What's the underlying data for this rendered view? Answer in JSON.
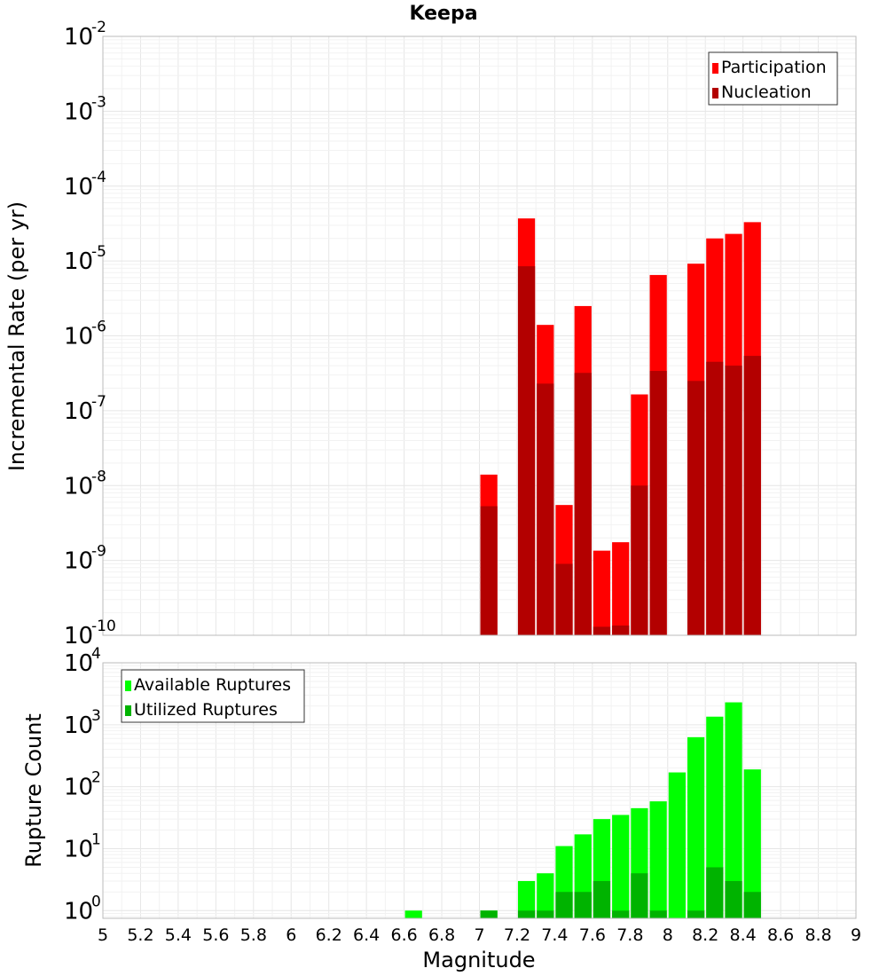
{
  "title": "Keepa",
  "chart_data": [
    {
      "type": "bar",
      "ylabel": "Incremental Rate (per yr)",
      "yscale": "log",
      "ylim": [
        1e-10,
        0.01
      ],
      "xlim": [
        5,
        9
      ],
      "grid": true,
      "legend_position": "top-right",
      "series": [
        {
          "name": "Participation",
          "color": "#ff0000",
          "points": [
            {
              "x": 7.05,
              "y": 1.4e-08
            },
            {
              "x": 7.25,
              "y": 3.7e-05
            },
            {
              "x": 7.35,
              "y": 1.4e-06
            },
            {
              "x": 7.45,
              "y": 5.5e-09
            },
            {
              "x": 7.55,
              "y": 2.5e-06
            },
            {
              "x": 7.65,
              "y": 1.35e-09
            },
            {
              "x": 7.75,
              "y": 1.75e-09
            },
            {
              "x": 7.85,
              "y": 1.65e-07
            },
            {
              "x": 7.95,
              "y": 6.5e-06
            },
            {
              "x": 8.15,
              "y": 9.2e-06
            },
            {
              "x": 8.25,
              "y": 2e-05
            },
            {
              "x": 8.35,
              "y": 2.3e-05
            },
            {
              "x": 8.45,
              "y": 3.3e-05
            }
          ]
        },
        {
          "name": "Nucleation",
          "color": "#b30000",
          "points": [
            {
              "x": 7.05,
              "y": 5.3e-09
            },
            {
              "x": 7.25,
              "y": 8.5e-06
            },
            {
              "x": 7.35,
              "y": 2.3e-07
            },
            {
              "x": 7.45,
              "y": 9e-10
            },
            {
              "x": 7.55,
              "y": 3.2e-07
            },
            {
              "x": 7.65,
              "y": 1.3e-10
            },
            {
              "x": 7.75,
              "y": 1.35e-10
            },
            {
              "x": 7.85,
              "y": 1e-08
            },
            {
              "x": 7.95,
              "y": 3.4e-07
            },
            {
              "x": 8.15,
              "y": 2.5e-07
            },
            {
              "x": 8.25,
              "y": 4.5e-07
            },
            {
              "x": 8.35,
              "y": 4e-07
            },
            {
              "x": 8.45,
              "y": 5.4e-07
            }
          ]
        }
      ]
    },
    {
      "type": "bar",
      "ylabel": "Rupture Count",
      "xlabel": "Magnitude",
      "yscale": "log",
      "ylim": [
        0.75,
        10000
      ],
      "xlim": [
        5,
        9
      ],
      "grid": true,
      "legend_position": "top-left",
      "series": [
        {
          "name": "Available Ruptures",
          "color": "#00ff00",
          "points": [
            {
              "x": 6.65,
              "y": 1
            },
            {
              "x": 7.05,
              "y": 1
            },
            {
              "x": 7.25,
              "y": 3
            },
            {
              "x": 7.35,
              "y": 4
            },
            {
              "x": 7.45,
              "y": 11
            },
            {
              "x": 7.55,
              "y": 17
            },
            {
              "x": 7.65,
              "y": 30
            },
            {
              "x": 7.75,
              "y": 35
            },
            {
              "x": 7.85,
              "y": 45
            },
            {
              "x": 7.95,
              "y": 58
            },
            {
              "x": 8.05,
              "y": 170
            },
            {
              "x": 8.15,
              "y": 630
            },
            {
              "x": 8.25,
              "y": 1350
            },
            {
              "x": 8.35,
              "y": 2300
            },
            {
              "x": 8.45,
              "y": 190
            }
          ]
        },
        {
          "name": "Utilized Ruptures",
          "color": "#00b300",
          "points": [
            {
              "x": 7.05,
              "y": 1
            },
            {
              "x": 7.25,
              "y": 1
            },
            {
              "x": 7.35,
              "y": 1
            },
            {
              "x": 7.45,
              "y": 2
            },
            {
              "x": 7.55,
              "y": 2
            },
            {
              "x": 7.65,
              "y": 3
            },
            {
              "x": 7.75,
              "y": 1
            },
            {
              "x": 7.85,
              "y": 4
            },
            {
              "x": 7.95,
              "y": 1
            },
            {
              "x": 8.15,
              "y": 1
            },
            {
              "x": 8.25,
              "y": 5
            },
            {
              "x": 8.35,
              "y": 3
            },
            {
              "x": 8.45,
              "y": 2
            }
          ]
        }
      ]
    }
  ],
  "axes": {
    "x_ticks": [
      "5",
      "5.2",
      "5.4",
      "5.6",
      "5.8",
      "6",
      "6.2",
      "6.4",
      "6.6",
      "6.8",
      "7",
      "7.2",
      "7.4",
      "7.6",
      "7.8",
      "8",
      "8.2",
      "8.4",
      "8.6",
      "8.8",
      "9"
    ],
    "top_y_ticks": [
      {
        "base": "10",
        "exp": "-2",
        "value": 0.01
      },
      {
        "base": "10",
        "exp": "-3",
        "value": 0.001
      },
      {
        "base": "10",
        "exp": "-4",
        "value": 0.0001
      },
      {
        "base": "10",
        "exp": "-5",
        "value": 1e-05
      },
      {
        "base": "10",
        "exp": "-6",
        "value": 1e-06
      },
      {
        "base": "10",
        "exp": "-7",
        "value": 1e-07
      },
      {
        "base": "10",
        "exp": "-8",
        "value": 1e-08
      },
      {
        "base": "10",
        "exp": "-9",
        "value": 1e-09
      },
      {
        "base": "10",
        "exp": "-10",
        "value": 1e-10
      }
    ],
    "bottom_y_ticks": [
      {
        "base": "10",
        "exp": "4",
        "value": 10000
      },
      {
        "base": "10",
        "exp": "3",
        "value": 1000
      },
      {
        "base": "10",
        "exp": "2",
        "value": 100
      },
      {
        "base": "10",
        "exp": "1",
        "value": 10
      },
      {
        "base": "10",
        "exp": "0",
        "value": 1
      }
    ]
  }
}
